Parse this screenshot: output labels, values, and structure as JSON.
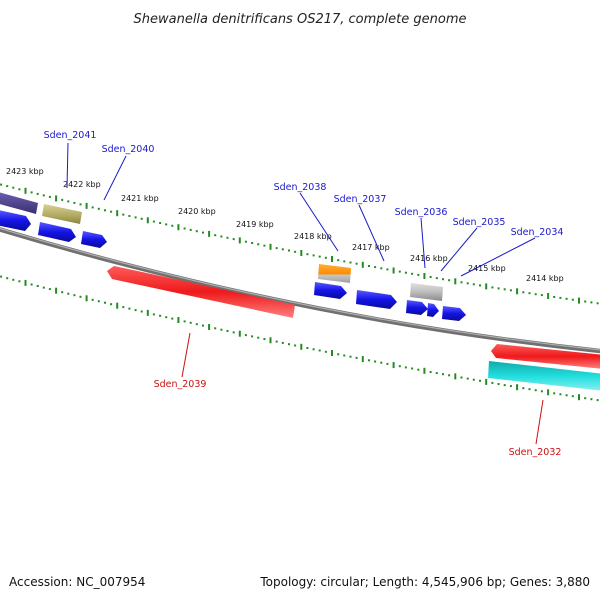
{
  "header": {
    "title": "Shewanella denitrificans OS217, complete genome"
  },
  "footer": {
    "accession": "Accession: NC_007954",
    "summary": "Topology: circular; Length: 4,545,906 bp; Genes: 3,880"
  },
  "colors": {
    "backbone": "#808080",
    "tick": "#228b22",
    "forward_label": "#1a1acc",
    "reverse_label": "#cc1111",
    "forward_gene": "#1414e6",
    "reverse_gene": "#ee1a1a"
  },
  "scale": {
    "labels": [
      "2423 kbp",
      "2422 kbp",
      "2421 kbp",
      "2420 kbp",
      "2419 kbp",
      "2418 kbp",
      "2417 kbp",
      "2416 kbp",
      "2415 kbp",
      "2414 kbp"
    ]
  },
  "genes": [
    {
      "name": "Sden_2041",
      "strand": "forward",
      "color": "#4b3f8c"
    },
    {
      "name": "Sden_2040",
      "strand": "forward",
      "color": "#b8b070"
    },
    {
      "name": "Sden_2038",
      "strand": "forward",
      "color": "#ff9900"
    },
    {
      "name": "Sden_2037",
      "strand": "forward",
      "color": "#1414e6"
    },
    {
      "name": "Sden_2036",
      "strand": "forward",
      "color": "#bfbfbf"
    },
    {
      "name": "Sden_2035",
      "strand": "forward",
      "color": "#1414e6"
    },
    {
      "name": "Sden_2034",
      "strand": "forward",
      "color": "#1414e6"
    },
    {
      "name": "Sden_2039",
      "strand": "reverse",
      "color": "#ee1a1a"
    },
    {
      "name": "Sden_2032",
      "strand": "reverse",
      "color": "#22cccc"
    }
  ]
}
